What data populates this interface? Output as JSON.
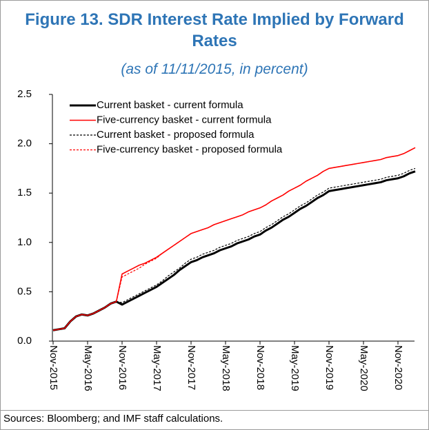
{
  "chart_data": {
    "type": "line",
    "title": "Figure 13. SDR Interest Rate Implied by Forward Rates",
    "subtitle": "(as of 11/11/2015, in percent)",
    "source": "Sources: Bloomberg; and IMF staff calculations.",
    "categories": [
      "Nov-2015",
      null,
      null,
      null,
      null,
      null,
      "May-2016",
      null,
      null,
      null,
      null,
      null,
      "Nov-2016",
      null,
      null,
      null,
      null,
      null,
      "May-2017",
      null,
      null,
      null,
      null,
      null,
      "Nov-2017",
      null,
      null,
      null,
      null,
      null,
      "May-2018",
      null,
      null,
      null,
      null,
      null,
      "Nov-2018",
      null,
      null,
      null,
      null,
      null,
      "May-2019",
      null,
      null,
      null,
      null,
      null,
      "Nov-2019",
      null,
      null,
      null,
      null,
      null,
      "May-2020",
      null,
      null,
      null,
      null,
      null,
      "Nov-2020",
      null,
      null,
      null
    ],
    "series": [
      {
        "name": "Current basket - current formula",
        "color": "#000000",
        "linestyle": "solid",
        "linewidth": 3,
        "values": [
          0.11,
          0.12,
          0.13,
          0.2,
          0.25,
          0.27,
          0.26,
          0.28,
          0.31,
          0.34,
          0.38,
          0.4,
          0.37,
          0.4,
          0.43,
          0.46,
          0.49,
          0.52,
          0.55,
          0.59,
          0.63,
          0.67,
          0.72,
          0.76,
          0.8,
          0.82,
          0.85,
          0.87,
          0.89,
          0.92,
          0.94,
          0.96,
          0.99,
          1.01,
          1.03,
          1.06,
          1.08,
          1.12,
          1.15,
          1.19,
          1.23,
          1.26,
          1.3,
          1.34,
          1.37,
          1.41,
          1.45,
          1.48,
          1.52,
          1.53,
          1.54,
          1.55,
          1.56,
          1.57,
          1.58,
          1.59,
          1.6,
          1.61,
          1.63,
          1.64,
          1.65,
          1.67,
          1.7,
          1.72
        ]
      },
      {
        "name": "Five-currency basket - current formula",
        "color": "#ff0000",
        "linestyle": "solid",
        "linewidth": 1.6,
        "values": [
          0.11,
          0.12,
          0.13,
          0.2,
          0.25,
          0.27,
          0.26,
          0.28,
          0.31,
          0.34,
          0.38,
          0.4,
          0.68,
          0.71,
          0.74,
          0.77,
          0.79,
          0.82,
          0.85,
          0.89,
          0.93,
          0.97,
          1.01,
          1.05,
          1.09,
          1.11,
          1.13,
          1.15,
          1.18,
          1.2,
          1.22,
          1.24,
          1.26,
          1.28,
          1.31,
          1.33,
          1.35,
          1.38,
          1.42,
          1.45,
          1.48,
          1.52,
          1.55,
          1.58,
          1.62,
          1.65,
          1.68,
          1.72,
          1.75,
          1.76,
          1.77,
          1.78,
          1.79,
          1.8,
          1.81,
          1.82,
          1.83,
          1.84,
          1.86,
          1.87,
          1.88,
          1.9,
          1.93,
          1.96
        ]
      },
      {
        "name": "Current basket - proposed formula",
        "color": "#000000",
        "linestyle": "dashed",
        "linewidth": 1.2,
        "values": [
          0.11,
          0.12,
          0.13,
          0.2,
          0.25,
          0.27,
          0.26,
          0.28,
          0.31,
          0.34,
          0.38,
          0.4,
          0.39,
          0.42,
          0.45,
          0.48,
          0.51,
          0.54,
          0.57,
          0.61,
          0.66,
          0.7,
          0.74,
          0.79,
          0.83,
          0.85,
          0.88,
          0.9,
          0.92,
          0.95,
          0.97,
          0.99,
          1.02,
          1.04,
          1.06,
          1.09,
          1.11,
          1.15,
          1.18,
          1.22,
          1.26,
          1.29,
          1.33,
          1.37,
          1.4,
          1.44,
          1.48,
          1.51,
          1.55,
          1.56,
          1.57,
          1.58,
          1.59,
          1.6,
          1.61,
          1.62,
          1.63,
          1.64,
          1.66,
          1.67,
          1.68,
          1.7,
          1.73,
          1.75
        ]
      },
      {
        "name": "Five-currency basket - proposed formula",
        "color": "#ff0000",
        "linestyle": "dashed",
        "linewidth": 1.2,
        "values": [
          0.11,
          0.12,
          0.13,
          0.2,
          0.25,
          0.27,
          0.26,
          0.28,
          0.31,
          0.34,
          0.38,
          0.4,
          0.65,
          0.68,
          0.71,
          0.74,
          0.78,
          0.81,
          0.84,
          0.89,
          0.93,
          0.97,
          1.01,
          1.05,
          1.09,
          1.11,
          1.13,
          1.15,
          1.18,
          1.2,
          1.22,
          1.24,
          1.26,
          1.28,
          1.31,
          1.33,
          1.35,
          1.38,
          1.42,
          1.45,
          1.48,
          1.52,
          1.55,
          1.58,
          1.62,
          1.65,
          1.68,
          1.72,
          1.75,
          1.76,
          1.77,
          1.78,
          1.79,
          1.8,
          1.81,
          1.82,
          1.83,
          1.84,
          1.86,
          1.87,
          1.88,
          1.9,
          1.93,
          1.96
        ]
      }
    ],
    "ylim": [
      0,
      2.5
    ],
    "yticks": [
      {
        "value": 0,
        "label": "0.0"
      },
      0.5,
      {
        "value": 1,
        "label": "1.0"
      },
      1.5,
      {
        "value": 2,
        "label": "2.0"
      },
      2.5
    ],
    "legend": "upper left",
    "grid": false
  }
}
